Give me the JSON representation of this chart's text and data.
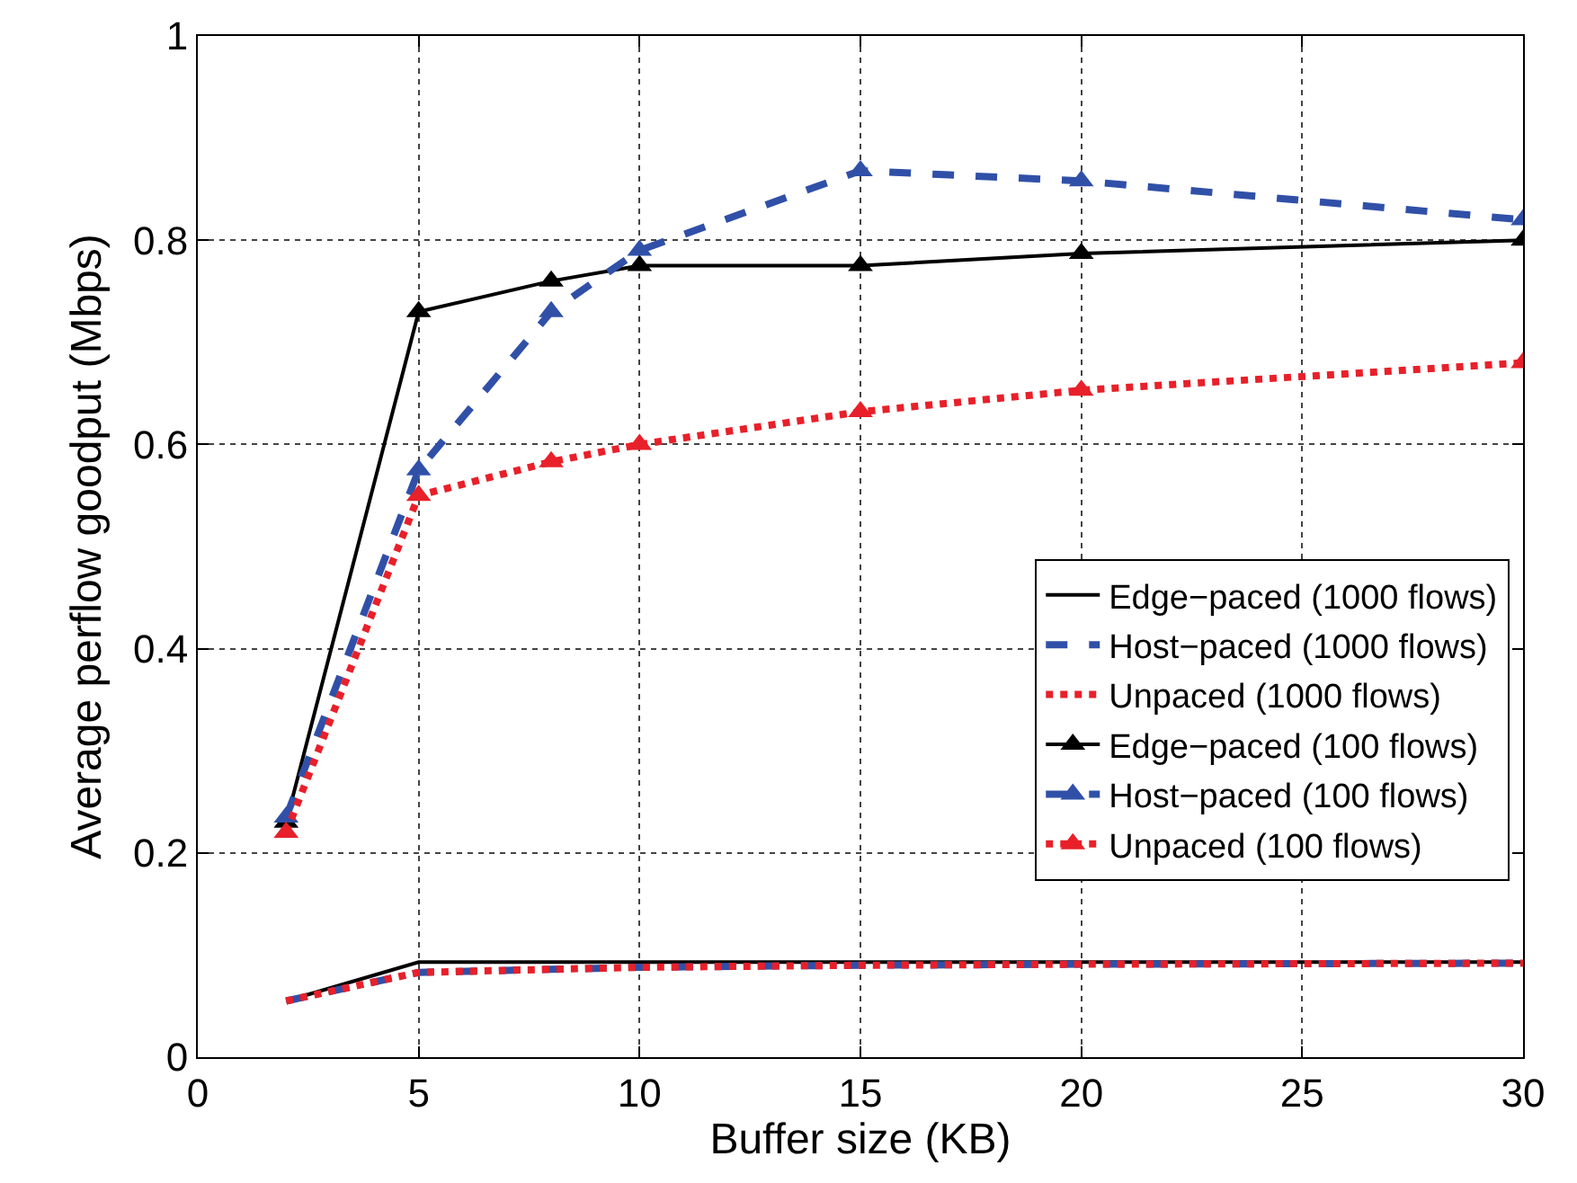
{
  "chart_data": {
    "type": "line",
    "xlabel": "Buffer size (KB)",
    "ylabel": "Average perflow goodput (Mbps)",
    "x": [
      2,
      5,
      8,
      10,
      15,
      20,
      30
    ],
    "xlim": [
      0,
      30
    ],
    "xticks": [
      0,
      5,
      10,
      15,
      20,
      25,
      30
    ],
    "ylim": [
      0,
      1
    ],
    "yticks": [
      0,
      0.2,
      0.4,
      0.6,
      0.8,
      1
    ],
    "grid": true,
    "legend": "right",
    "series": [
      {
        "name": "Edge−paced (1000 flows)",
        "color": "#000000",
        "line_style": "solid",
        "marker": "none",
        "values": [
          0.055,
          0.093,
          0.093,
          0.093,
          0.093,
          0.093,
          0.093
        ]
      },
      {
        "name": "Host−paced (1000 flows)",
        "color": "#3050a8",
        "line_style": "dashed",
        "marker": "none",
        "values": [
          0.055,
          0.083,
          0.086,
          0.088,
          0.09,
          0.091,
          0.092
        ]
      },
      {
        "name": "Unpaced (1000 flows)",
        "color": "#e8202a",
        "line_style": "dotted",
        "marker": "none",
        "values": [
          0.055,
          0.083,
          0.086,
          0.088,
          0.09,
          0.091,
          0.092
        ]
      },
      {
        "name": "Edge−paced (100 flows)",
        "color": "#000000",
        "line_style": "solid",
        "marker": "triangle",
        "values": [
          0.23,
          0.73,
          0.76,
          0.775,
          0.775,
          0.787,
          0.8
        ]
      },
      {
        "name": "Host−paced (100 flows)",
        "color": "#3050a8",
        "line_style": "dashed",
        "marker": "triangle",
        "values": [
          0.235,
          0.575,
          0.73,
          0.79,
          0.868,
          0.858,
          0.82
        ]
      },
      {
        "name": "Unpaced (100 flows)",
        "color": "#e8202a",
        "line_style": "dotted",
        "marker": "triangle",
        "values": [
          0.22,
          0.55,
          0.583,
          0.6,
          0.632,
          0.653,
          0.68
        ]
      }
    ]
  }
}
